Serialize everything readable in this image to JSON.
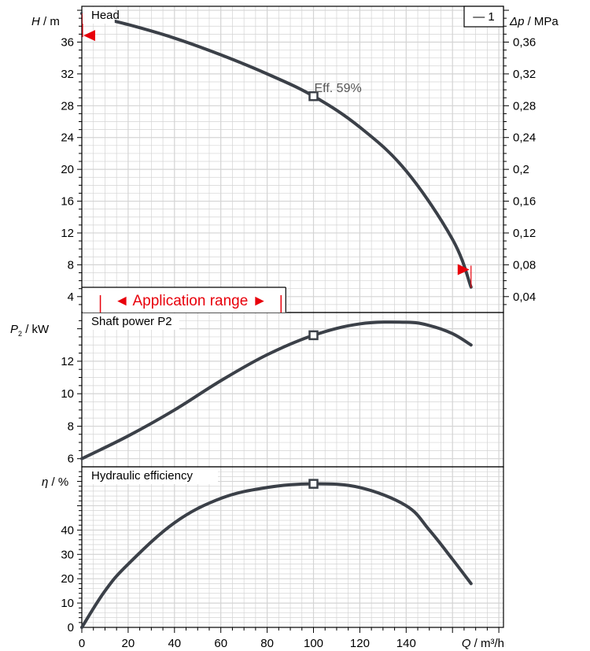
{
  "chart_data": [
    {
      "type": "line",
      "panel": "head",
      "title": "Head",
      "ylabel_symbol": "H",
      "ylabel_unit": " / m",
      "y2label_symbol": "Δp",
      "y2label_unit": " / MPa",
      "legend": "— 1",
      "xlim": [
        0,
        182
      ],
      "ylim": [
        2,
        40.5
      ],
      "yticks": [
        4,
        8,
        12,
        16,
        20,
        24,
        28,
        32,
        36
      ],
      "y2ticks": [
        "0,04",
        "0,08",
        "0,12",
        "0,16",
        "0,2",
        "0,24",
        "0,28",
        "0,32",
        "0,36"
      ],
      "x": [
        0,
        20,
        40,
        60,
        80,
        100,
        120,
        140,
        160,
        168
      ],
      "y": [
        39.6,
        38.2,
        36.5,
        34.4,
        32.0,
        29.2,
        25.3,
        19.8,
        11.2,
        5.2
      ],
      "operating_point": {
        "x": 100,
        "y": 29.2
      },
      "annotation": "Eff.  59%",
      "application_range_label": "◄ Application range ►",
      "application_range_x": [
        8,
        86
      ]
    },
    {
      "type": "line",
      "panel": "power",
      "title": "Shaft power P2",
      "ylabel_symbol": "P",
      "ylabel_sub": "2",
      "ylabel_unit": " / kW",
      "xlim": [
        0,
        182
      ],
      "ylim": [
        5.5,
        15.0
      ],
      "yticks": [
        6,
        8,
        10,
        12
      ],
      "x": [
        0,
        20,
        40,
        60,
        80,
        100,
        120,
        140,
        150,
        160,
        168
      ],
      "y": [
        6.0,
        7.4,
        9.0,
        10.8,
        12.4,
        13.6,
        14.3,
        14.4,
        14.2,
        13.7,
        13.0
      ],
      "operating_point": {
        "x": 100,
        "y": 13.6
      }
    },
    {
      "type": "line",
      "panel": "efficiency",
      "title": "Hydraulic efficiency",
      "ylabel_symbol": "η",
      "ylabel_unit": " / %",
      "xlim": [
        0,
        182
      ],
      "ylim": [
        0,
        66
      ],
      "yticks": [
        0,
        10,
        20,
        30,
        40
      ],
      "x": [
        0,
        10,
        20,
        40,
        60,
        80,
        100,
        120,
        140,
        150,
        160,
        168
      ],
      "y": [
        0,
        15,
        26,
        43,
        53,
        57.5,
        59,
        57.5,
        50,
        40,
        28,
        18
      ],
      "operating_point": {
        "x": 100,
        "y": 59
      },
      "xticks": [
        0,
        20,
        40,
        60,
        80,
        100,
        120,
        140
      ],
      "xlabel_symbol": "Q",
      "xlabel_unit": " / m³/h"
    }
  ],
  "colors": {
    "curve": "#3b4048",
    "grid": "#d4d4d4",
    "frame": "#000000",
    "red": "#e8000b"
  }
}
